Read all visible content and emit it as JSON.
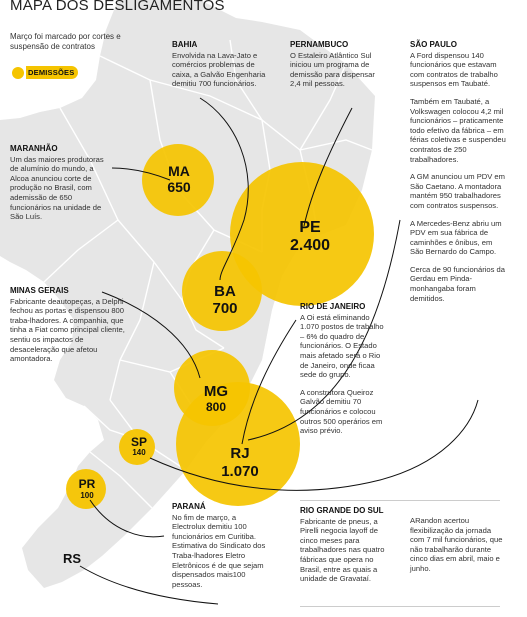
{
  "title": "MAPA DOS DESLIGAMENTOS",
  "subtitle": "Março foi marcado por cortes e suspensão de contratos",
  "legend": {
    "label": "DEMISSÕES",
    "color": "#f5c400"
  },
  "colors": {
    "land": "#e6e6e6",
    "border": "#ffffff",
    "bubble": "#f5c400",
    "leader": "#111111"
  },
  "bubbles": {
    "ma": {
      "state": "MA",
      "value": "650"
    },
    "pe": {
      "state": "PE",
      "value": "2.400"
    },
    "ba": {
      "state": "BA",
      "value": "700"
    },
    "mg": {
      "state": "MG",
      "value": "800"
    },
    "rj": {
      "state": "RJ",
      "value": "1.070"
    },
    "sp": {
      "state": "SP",
      "value": "140"
    },
    "pr": {
      "state": "PR",
      "value": "100"
    },
    "rs": {
      "state": "RS",
      "value": ""
    }
  },
  "bahia": {
    "heading": "BAHIA",
    "text": "Envolvida na Lava-Jato e comércios problemas de caixa, a Galvão Engenharia demitiu 700 funcionários."
  },
  "pernambuco": {
    "heading": "PERNAMBUCO",
    "text": "O Estaleiro Atlântico Sul iniciou um programa de demissão para dispensar 2,4 mil pessoas."
  },
  "sao_paulo": {
    "heading": "SÃO PAULO",
    "p1": "A Ford dispensou 140 funcionários que estavam com contratos de trabalho suspensos em Taubaté.",
    "p2": "Também em Taubaté, a Volkswagen colocou 4,2 mil funcionários – praticamente todo efetivo da fábrica – em férias coletivas e suspendeu contratos de 250 trabalhadores.",
    "p3": "A GM anunciou um PDV em São Caetano. A montadora mantém 950 trabalhadores com contratos suspensos.",
    "p4": "A Mercedes-Benz abriu um PDV em sua fábrica de caminhões e ônibus, em São Bernardo do Campo.",
    "p5": "Cerca de 90 funcionários da Gerdau em Pinda-monhangaba foram demitidos."
  },
  "maranhao": {
    "heading": "MARANHÃO",
    "text": "Um das maiores produtoras de alumínio do mundo, a Alcoa anunciou corte de produção no Brasil, com ademissão de 650 funcionários na unidade de São Luís."
  },
  "minas_gerais": {
    "heading": "MINAS GERAIS",
    "text": "Fabricante deautopeças, a Delphi fechou as portas e dispensou 800 traba-lhadores. A companhia, que tinha a Fiat como principal cliente, sentiu os impactos de desaceleração que afetou amontadora."
  },
  "rio_de_janeiro": {
    "heading": "RIO DE JANEIRO",
    "p1": "A Oi está eliminando 1.070 postos de trabalho – 6% do quadro de funcionários. O Estado mais afetado será o Rio de Janeiro, onde ficaa sede do grupo.",
    "p2": "A construtora Queiroz Galvão demitiu 70 funcionários e colocou outros 500 operários em aviso prévio."
  },
  "parana": {
    "heading": "PARANÁ",
    "text": "No fim de março, a Electrolux demitiu 100 funcionários em Curitiba. Estimativa do Sindicato dos Traba-lhadores Eletro Eletrônicos é de que sejam dispensados mais100 pessoas."
  },
  "rio_grande_do_sul": {
    "heading": "RIO GRANDE DO SUL",
    "p1": "Fabricante de pneus, a Pirelli negocia layoff de cinco meses para trabalhadores nas quatro fábricas que opera no Brasil, entre as quais a unidade de Gravataí.",
    "p2": "ARandon acertou flexibilização da jornada com 7 mil funcionários, que não trabalharão durante cinco dias em abril, maio e junho."
  }
}
